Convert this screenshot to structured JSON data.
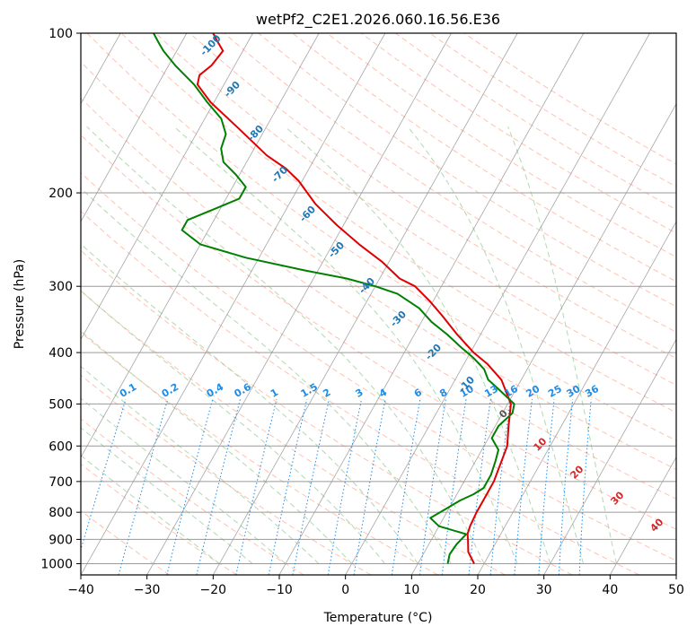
{
  "chart_data": {
    "type": "line",
    "title": "wetPf2_C2E1.2026.060.16.56.E36",
    "xlabel": "Temperature (°C)",
    "ylabel": "Pressure (hPa)",
    "xlim": [
      -40,
      50
    ],
    "ylim": [
      1050,
      100
    ],
    "y_scale": "log",
    "grid": true,
    "x_ticks": [
      -40,
      -30,
      -20,
      -10,
      0,
      10,
      20,
      30,
      40,
      50
    ],
    "y_ticks": [
      100,
      200,
      300,
      400,
      500,
      600,
      700,
      800,
      900,
      1000
    ],
    "series": [
      {
        "role": "temperature",
        "color": "#e00000",
        "points": [
          {
            "p": 1000,
            "t": 18.5
          },
          {
            "p": 950,
            "t": 16.6
          },
          {
            "p": 900,
            "t": 15.5
          },
          {
            "p": 880,
            "t": 15.0
          },
          {
            "p": 850,
            "t": 14.7
          },
          {
            "p": 800,
            "t": 14.5
          },
          {
            "p": 750,
            "t": 14.5
          },
          {
            "p": 700,
            "t": 14.5
          },
          {
            "p": 600,
            "t": 13.5
          },
          {
            "p": 550,
            "t": 12.0
          },
          {
            "p": 500,
            "t": 10.5
          },
          {
            "p": 450,
            "t": 7.0
          },
          {
            "p": 420,
            "t": 3.5
          },
          {
            "p": 400,
            "t": 0.5
          },
          {
            "p": 370,
            "t": -3.5
          },
          {
            "p": 340,
            "t": -7.5
          },
          {
            "p": 320,
            "t": -10.5
          },
          {
            "p": 300,
            "t": -14.0
          },
          {
            "p": 290,
            "t": -17.0
          },
          {
            "p": 270,
            "t": -21.0
          },
          {
            "p": 250,
            "t": -26.0
          },
          {
            "p": 230,
            "t": -31.0
          },
          {
            "p": 210,
            "t": -36.0
          },
          {
            "p": 190,
            "t": -40.5
          },
          {
            "p": 180,
            "t": -43.5
          },
          {
            "p": 170,
            "t": -47.5
          },
          {
            "p": 150,
            "t": -54.5
          },
          {
            "p": 135,
            "t": -60.5
          },
          {
            "p": 125,
            "t": -64.0
          },
          {
            "p": 120,
            "t": -64.5
          },
          {
            "p": 115,
            "t": -63.5
          },
          {
            "p": 108,
            "t": -63.0
          },
          {
            "p": 104,
            "t": -64.5
          },
          {
            "p": 100,
            "t": -66.0
          }
        ]
      },
      {
        "role": "dewpoint",
        "color": "#008000",
        "points": [
          {
            "p": 1000,
            "t": 14.5
          },
          {
            "p": 960,
            "t": 14.0
          },
          {
            "p": 920,
            "t": 14.2
          },
          {
            "p": 880,
            "t": 14.8
          },
          {
            "p": 850,
            "t": 10.0
          },
          {
            "p": 820,
            "t": 8.0
          },
          {
            "p": 790,
            "t": 9.5
          },
          {
            "p": 760,
            "t": 11.0
          },
          {
            "p": 740,
            "t": 12.5
          },
          {
            "p": 720,
            "t": 13.5
          },
          {
            "p": 680,
            "t": 13.5
          },
          {
            "p": 640,
            "t": 13.0
          },
          {
            "p": 610,
            "t": 12.5
          },
          {
            "p": 580,
            "t": 10.5
          },
          {
            "p": 550,
            "t": 10.5
          },
          {
            "p": 520,
            "t": 11.5
          },
          {
            "p": 500,
            "t": 11.0
          },
          {
            "p": 470,
            "t": 7.5
          },
          {
            "p": 450,
            "t": 5.0
          },
          {
            "p": 430,
            "t": 3.5
          },
          {
            "p": 410,
            "t": 1.0
          },
          {
            "p": 390,
            "t": -2.0
          },
          {
            "p": 370,
            "t": -5.0
          },
          {
            "p": 350,
            "t": -8.5
          },
          {
            "p": 330,
            "t": -11.5
          },
          {
            "p": 310,
            "t": -16.0
          },
          {
            "p": 300,
            "t": -20.0
          },
          {
            "p": 290,
            "t": -25.0
          },
          {
            "p": 280,
            "t": -32.0
          },
          {
            "p": 265,
            "t": -42.0
          },
          {
            "p": 250,
            "t": -50.0
          },
          {
            "p": 235,
            "t": -54.0
          },
          {
            "p": 225,
            "t": -54.0
          },
          {
            "p": 215,
            "t": -51.0
          },
          {
            "p": 205,
            "t": -48.0
          },
          {
            "p": 195,
            "t": -48.0
          },
          {
            "p": 185,
            "t": -50.5
          },
          {
            "p": 175,
            "t": -53.5
          },
          {
            "p": 165,
            "t": -55.0
          },
          {
            "p": 155,
            "t": -55.5
          },
          {
            "p": 145,
            "t": -57.5
          },
          {
            "p": 135,
            "t": -61.0
          },
          {
            "p": 125,
            "t": -64.5
          },
          {
            "p": 115,
            "t": -69.0
          },
          {
            "p": 108,
            "t": -72.0
          },
          {
            "p": 104,
            "t": -73.5
          },
          {
            "p": 100,
            "t": -75.0
          }
        ]
      }
    ],
    "isotherms_skewed": {
      "values": [
        -100,
        -90,
        -80,
        -70,
        -60,
        -50,
        -40,
        -30,
        -20,
        -10,
        0,
        10,
        20,
        30,
        40,
        50
      ],
      "color": "#808080"
    },
    "dry_adiabat_color": "#ff9070",
    "moist_adiabat_color": "#90c890",
    "mixing_ratio": {
      "color": "#1e8ce6",
      "labels": [
        "0.1",
        "0.2",
        "0.4",
        "0.6",
        "1",
        "1.5",
        "2",
        "3",
        "4",
        "6",
        "8",
        "10",
        "13",
        "16",
        "20",
        "25",
        "30",
        "36"
      ]
    },
    "temperature_labels": {
      "color_cold": "#1f77b4",
      "color_warm": "#d62728",
      "neutral_color": "#555555",
      "labels": [
        "-100",
        "-90",
        "-80",
        "-70",
        "-60",
        "-50",
        "-40",
        "-30",
        "-20",
        "-10",
        "0",
        "10",
        "20",
        "30",
        "40"
      ]
    }
  }
}
